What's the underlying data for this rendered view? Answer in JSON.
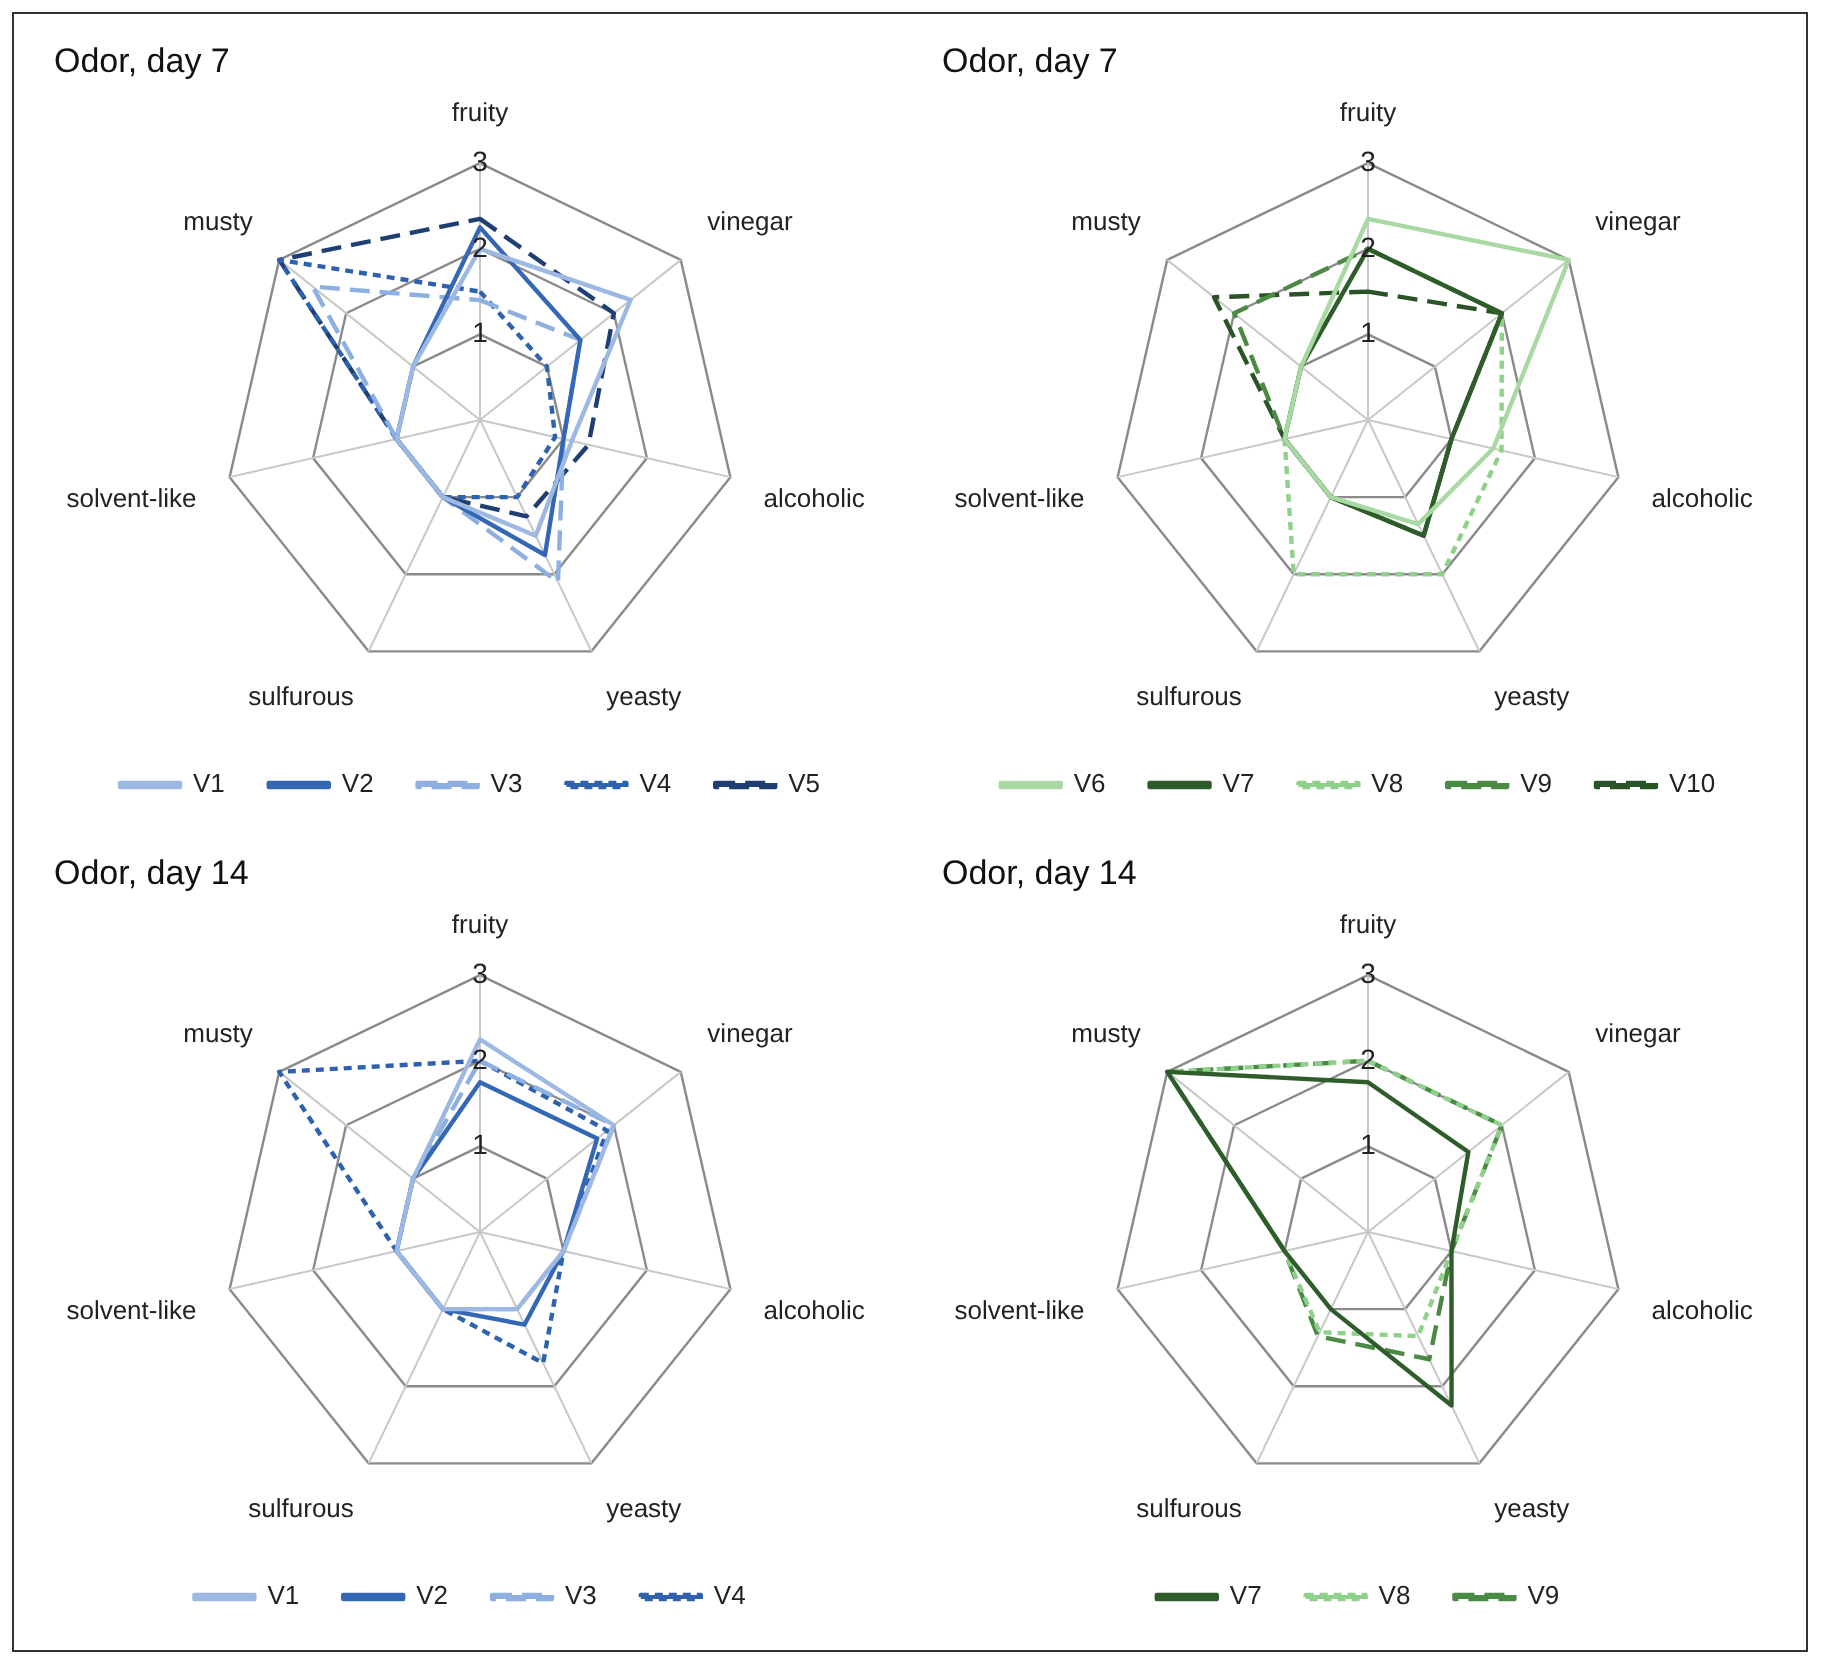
{
  "chart_data": [
    {
      "type": "radar",
      "title": "Odor, day 7",
      "categories": [
        "fruity",
        "vinegar",
        "alcoholic",
        "yeasty",
        "sulfurous",
        "solvent-like",
        "musty"
      ],
      "ylim": [
        0,
        3
      ],
      "yticks": [
        1,
        2,
        3
      ],
      "legend": "bottom",
      "marker": "none",
      "series": [
        {
          "name": "V1",
          "color": "#9db8e2",
          "line_style": "solid",
          "values": [
            2.0,
            2.25,
            1.1,
            1.5,
            1.0,
            1.0,
            1.0
          ]
        },
        {
          "name": "V2",
          "color": "#3568b4",
          "line_style": "solid",
          "values": [
            2.25,
            1.5,
            1.0,
            1.75,
            1.0,
            1.0,
            1.0
          ]
        },
        {
          "name": "V3",
          "color": "#8eb0e0",
          "line_style": "dashed",
          "values": [
            1.4,
            1.5,
            1.0,
            2.1,
            1.0,
            1.0,
            2.5
          ]
        },
        {
          "name": "V4",
          "color": "#2f62ae",
          "line_style": "dotted",
          "values": [
            1.5,
            1.0,
            0.9,
            1.0,
            1.0,
            1.0,
            3.0
          ]
        },
        {
          "name": "V5",
          "color": "#1f3f73",
          "line_style": "dashed",
          "values": [
            2.35,
            2.0,
            1.3,
            1.25,
            1.0,
            1.0,
            3.0
          ]
        }
      ]
    },
    {
      "type": "radar",
      "title": "Odor, day 7",
      "categories": [
        "fruity",
        "vinegar",
        "alcoholic",
        "yeasty",
        "sulfurous",
        "solvent-like",
        "musty"
      ],
      "ylim": [
        0,
        3
      ],
      "yticks": [
        1,
        2,
        3
      ],
      "legend": "bottom",
      "marker": "none",
      "series": [
        {
          "name": "V6",
          "color": "#a9d9a2",
          "line_style": "solid",
          "values": [
            2.35,
            3.0,
            1.5,
            1.35,
            1.0,
            1.0,
            1.0
          ]
        },
        {
          "name": "V7",
          "color": "#2f5c2b",
          "line_style": "solid",
          "values": [
            2.0,
            2.0,
            1.0,
            1.5,
            1.0,
            1.0,
            1.0
          ]
        },
        {
          "name": "V8",
          "color": "#8fd08a",
          "line_style": "dotted",
          "values": [
            2.0,
            2.0,
            1.6,
            2.0,
            2.0,
            1.0,
            1.0
          ]
        },
        {
          "name": "V9",
          "color": "#4a8a42",
          "line_style": "dashed",
          "values": [
            2.0,
            2.0,
            1.0,
            1.5,
            1.0,
            1.0,
            2.0
          ]
        },
        {
          "name": "V10",
          "color": "#2a5427",
          "line_style": "dashed",
          "values": [
            1.5,
            2.0,
            1.0,
            1.5,
            1.0,
            1.0,
            2.3
          ]
        }
      ]
    },
    {
      "type": "radar",
      "title": "Odor, day 14",
      "categories": [
        "fruity",
        "vinegar",
        "alcoholic",
        "yeasty",
        "sulfurous",
        "solvent-like",
        "musty"
      ],
      "ylim": [
        0,
        3
      ],
      "yticks": [
        1,
        2,
        3
      ],
      "legend": "bottom",
      "marker": "none",
      "series": [
        {
          "name": "V1",
          "color": "#9db8e2",
          "line_style": "solid",
          "values": [
            2.25,
            2.0,
            1.0,
            1.0,
            1.0,
            1.0,
            1.0
          ]
        },
        {
          "name": "V2",
          "color": "#3568b4",
          "line_style": "solid",
          "values": [
            1.75,
            1.75,
            1.0,
            1.2,
            1.0,
            1.0,
            1.0
          ]
        },
        {
          "name": "V3",
          "color": "#8eb0e0",
          "line_style": "dashed",
          "values": [
            2.0,
            2.0,
            1.0,
            1.0,
            1.0,
            1.0,
            1.0
          ]
        },
        {
          "name": "V4",
          "color": "#2f62ae",
          "line_style": "dotted",
          "values": [
            2.0,
            1.9,
            1.0,
            1.7,
            1.0,
            1.0,
            3.0
          ]
        }
      ]
    },
    {
      "type": "radar",
      "title": "Odor, day 14",
      "categories": [
        "fruity",
        "vinegar",
        "alcoholic",
        "yeasty",
        "sulfurous",
        "solvent-like",
        "musty"
      ],
      "ylim": [
        0,
        3
      ],
      "yticks": [
        1,
        2,
        3
      ],
      "legend": "bottom",
      "marker": "none",
      "series": [
        {
          "name": "V7",
          "color": "#2f5c2b",
          "line_style": "solid",
          "values": [
            1.75,
            1.5,
            1.0,
            2.25,
            1.0,
            1.0,
            3.0
          ]
        },
        {
          "name": "V8",
          "color": "#8fd08a",
          "line_style": "dotted",
          "values": [
            2.0,
            2.0,
            1.0,
            1.35,
            1.3,
            1.0,
            3.0
          ]
        },
        {
          "name": "V9",
          "color": "#4a8a42",
          "line_style": "dashed",
          "values": [
            2.0,
            2.0,
            1.0,
            1.65,
            1.35,
            1.0,
            3.0
          ]
        }
      ]
    }
  ]
}
